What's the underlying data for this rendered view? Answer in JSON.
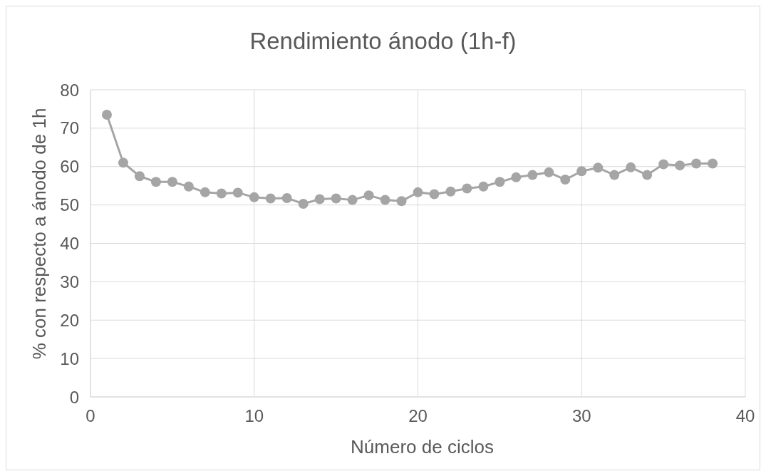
{
  "chart_data": {
    "type": "line",
    "title": "Rendimiento ánodo (1h-f)",
    "xlabel": "Número de ciclos",
    "ylabel": "% con respecto a ánodo de 1h",
    "x": [
      1,
      2,
      3,
      4,
      5,
      6,
      7,
      8,
      9,
      10,
      11,
      12,
      13,
      14,
      15,
      16,
      17,
      18,
      19,
      20,
      21,
      22,
      23,
      24,
      25,
      26,
      27,
      28,
      29,
      30,
      31,
      32,
      33,
      34,
      35,
      36,
      37,
      38
    ],
    "series": [
      {
        "color": "#a5a5a5",
        "values": [
          73.5,
          61,
          57.5,
          56,
          56,
          54.8,
          53.3,
          53,
          53.2,
          52,
          51.7,
          51.8,
          50.3,
          51.5,
          51.7,
          51.3,
          52.5,
          51.3,
          51,
          53.3,
          52.8,
          53.5,
          54.3,
          54.8,
          56,
          57.2,
          57.8,
          58.5,
          56.6,
          58.8,
          59.7,
          57.8,
          59.8,
          57.8,
          60.6,
          60.3,
          60.8,
          60.8
        ]
      }
    ],
    "xlim": [
      0,
      40
    ],
    "xticks": [
      0,
      10,
      20,
      30,
      40
    ],
    "ylim": [
      0,
      80
    ],
    "yticks": [
      0,
      10,
      20,
      30,
      40,
      50,
      60,
      70,
      80
    ],
    "grid": true,
    "marker": "circle",
    "line_style": "solid"
  }
}
